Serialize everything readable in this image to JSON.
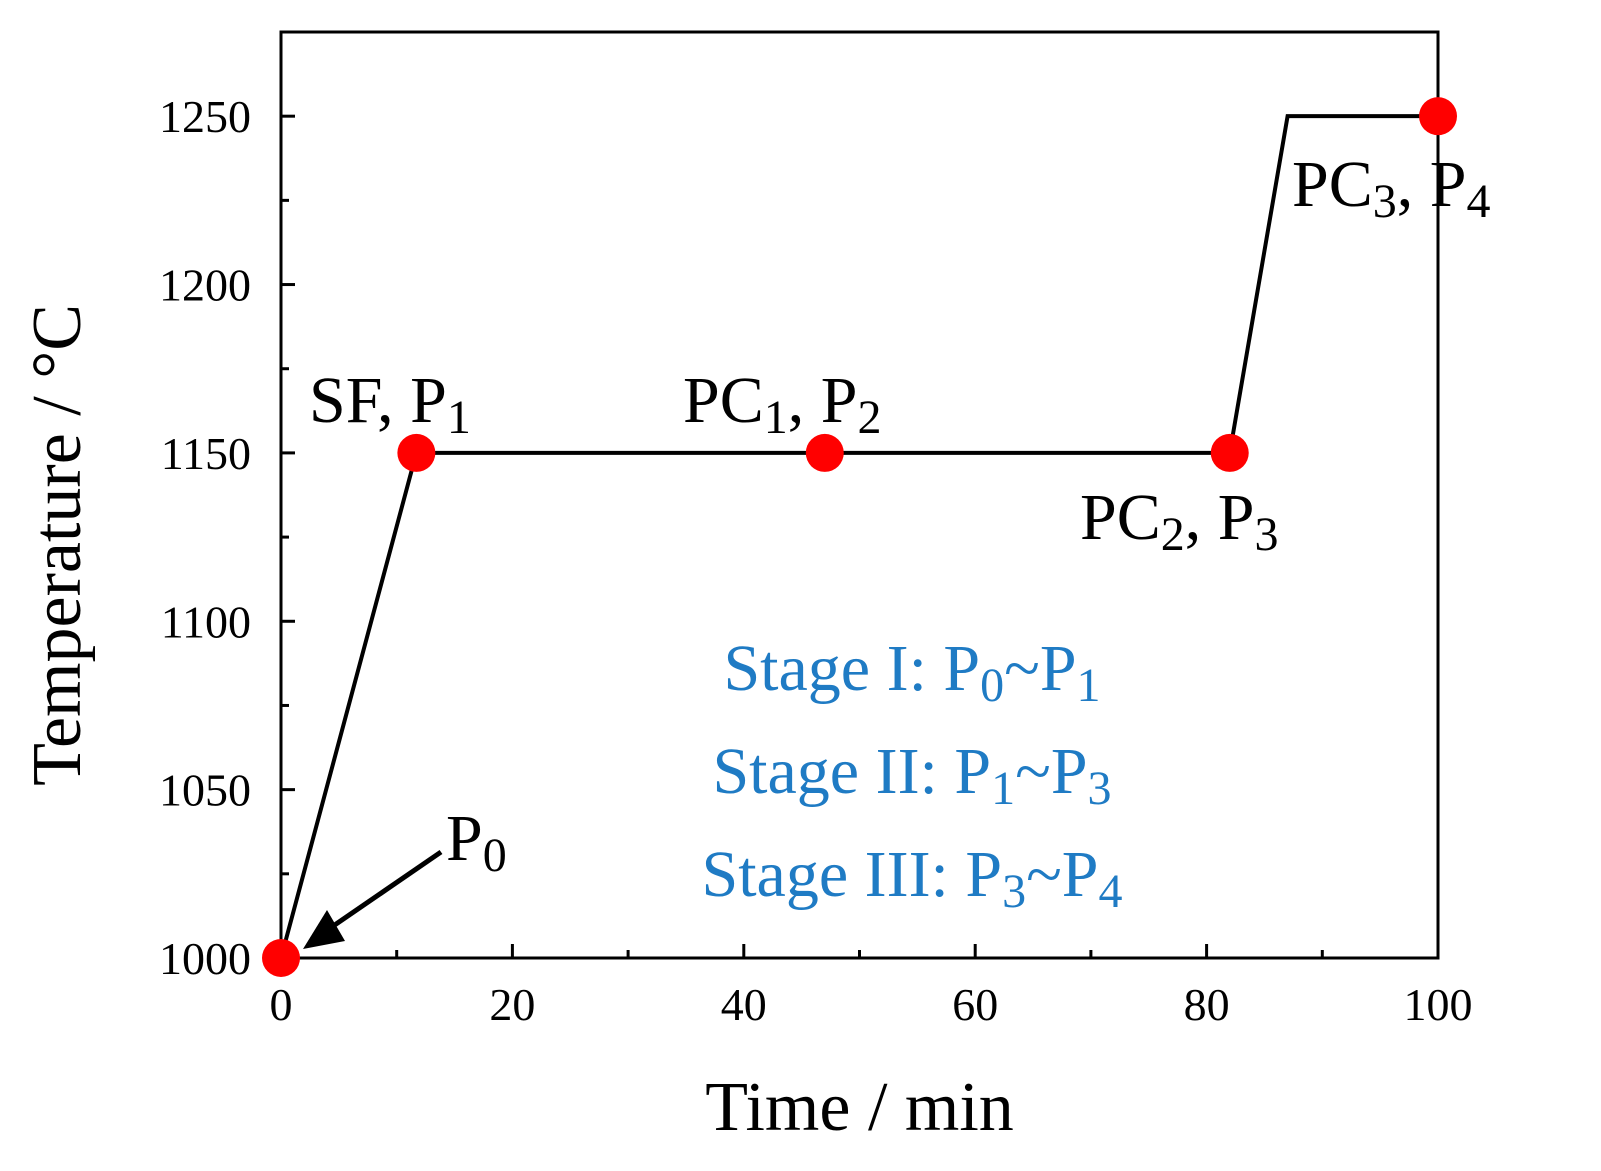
{
  "chart_data": {
    "type": "line",
    "xlabel": "Time / min",
    "ylabel": "Temperature / °C",
    "xlim": [
      0,
      100
    ],
    "ylim": [
      1000,
      1275
    ],
    "xticks": [
      0,
      20,
      40,
      60,
      80,
      100
    ],
    "yticks": [
      1000,
      1050,
      1100,
      1150,
      1200,
      1250
    ],
    "grid": false,
    "series": [
      {
        "x": [
          0,
          11.7,
          82,
          87,
          100
        ],
        "y": [
          1000,
          1150,
          1150,
          1250,
          1250
        ],
        "color": "#000000"
      }
    ],
    "points": [
      {
        "x": 0,
        "y": 1000,
        "label": {
          "main": "P",
          "sub": "0",
          "tail": "",
          "tailsub": ""
        },
        "color": "#ff0000"
      },
      {
        "x": 11.7,
        "y": 1150,
        "label": {
          "main": "SF, P",
          "sub": "1",
          "tail": "",
          "tailsub": ""
        },
        "color": "#ff0000"
      },
      {
        "x": 47,
        "y": 1150,
        "label": {
          "main": "PC",
          "sub": "1",
          "tail": ", P",
          "tailsub": "2"
        },
        "color": "#ff0000"
      },
      {
        "x": 82,
        "y": 1150,
        "label": {
          "main": "PC",
          "sub": "2",
          "tail": ", P",
          "tailsub": "3"
        },
        "color": "#ff0000"
      },
      {
        "x": 100,
        "y": 1250,
        "label": {
          "main": "PC",
          "sub": "3",
          "tail": ", P",
          "tailsub": "4"
        },
        "color": "#ff0000"
      }
    ],
    "annotations": [
      {
        "parts": [
          "Stage I: P",
          "0",
          "~P",
          "1"
        ]
      },
      {
        "parts": [
          "Stage II: P",
          "1",
          "~P",
          "3"
        ]
      },
      {
        "parts": [
          "Stage III: P",
          "3",
          "~P",
          "4"
        ]
      }
    ],
    "annotation_color": "#1f7bc4"
  }
}
